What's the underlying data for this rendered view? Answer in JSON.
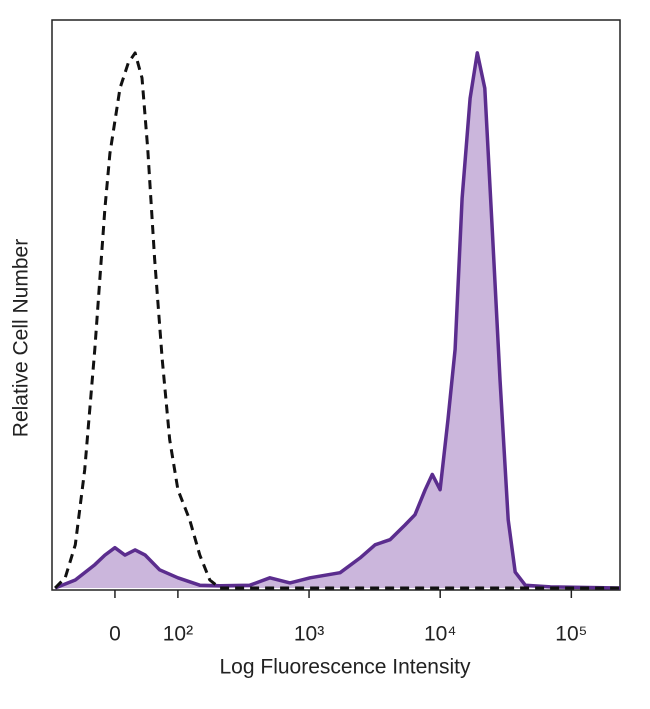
{
  "chart_data": {
    "type": "area",
    "x_label": "Log Fluorescence Intensity",
    "y_label": "Relative Cell Number",
    "xscale": "biexponential",
    "xlim": [
      -100,
      235000
    ],
    "ylim": [
      0,
      100
    ],
    "xticks": [
      {
        "value": 0,
        "label": "0"
      },
      {
        "value": 100,
        "label": "10²"
      },
      {
        "value": 1000,
        "label": "10³"
      },
      {
        "value": 10000,
        "label": "10⁴"
      },
      {
        "value": 100000,
        "label": "10⁵"
      }
    ],
    "series": [
      {
        "color": "#5b2d8e",
        "fill": "#cbb6dc",
        "dashed": false,
        "x": [
          -95,
          -63,
          -32,
          -16,
          0,
          16,
          32,
          48,
          71,
          100,
          147,
          209,
          354,
          503,
          716,
          1019,
          1725,
          2450,
          3190,
          4140,
          5390,
          6430,
          7680,
          8700,
          9990,
          11460,
          13000,
          14700,
          16900,
          19200,
          21900,
          24900,
          28600,
          33000,
          37300,
          44600,
          69300,
          235000
        ],
        "values": [
          0,
          1.4,
          4.1,
          5.8,
          7.1,
          5.8,
          6.7,
          5.8,
          3.2,
          1.8,
          0.5,
          0.4,
          0.5,
          1.8,
          0.9,
          1.8,
          2.7,
          5.3,
          7.6,
          8.5,
          11.1,
          12.9,
          17.3,
          20,
          17.3,
          29.7,
          42,
          68.6,
          86.2,
          94.2,
          88,
          63.3,
          36.7,
          12,
          2.8,
          0.5,
          0.2,
          0
        ]
      },
      {
        "color": "#111111",
        "fill": null,
        "dashed": true,
        "x": [
          -95,
          -79,
          -63,
          -48,
          -32,
          -16,
          -8,
          8,
          21,
          32,
          43,
          52,
          63,
          75,
          87,
          100,
          123,
          147,
          175,
          209,
          235000
        ],
        "values": [
          0,
          1.8,
          7.6,
          20.8,
          42,
          66.8,
          76.5,
          88,
          92.4,
          94.2,
          89.8,
          77.4,
          58,
          40.3,
          26.1,
          17.3,
          12,
          5.8,
          1.4,
          0,
          0
        ]
      }
    ]
  }
}
